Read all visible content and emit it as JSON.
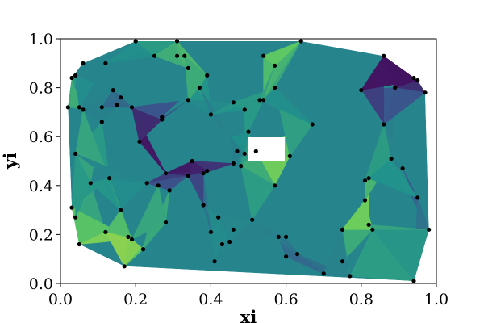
{
  "chart_data": {
    "type": "scatter",
    "title": "",
    "xlabel": "xi",
    "ylabel": "yi",
    "xlim": [
      0.0,
      1.0
    ],
    "ylim": [
      0.0,
      1.0
    ],
    "xticks": [
      "0.0",
      "0.2",
      "0.4",
      "0.6",
      "0.8",
      "1.0"
    ],
    "yticks": [
      "0.0",
      "0.2",
      "0.4",
      "0.6",
      "0.8",
      "1.0"
    ],
    "background": "triangulated color field (viridis) of the interpolated values over the convex hull of the points",
    "colormap": [
      "#440154",
      "#3b528b",
      "#21918c",
      "#5ec962",
      "#fde725"
    ],
    "point_color": "#000000",
    "grid": false,
    "legend": "none",
    "points": [
      [
        0.02,
        0.72
      ],
      [
        0.03,
        0.84
      ],
      [
        0.04,
        0.85
      ],
      [
        0.05,
        0.72
      ],
      [
        0.06,
        0.9
      ],
      [
        0.06,
        0.71
      ],
      [
        0.04,
        0.53
      ],
      [
        0.03,
        0.31
      ],
      [
        0.04,
        0.27
      ],
      [
        0.05,
        0.16
      ],
      [
        0.08,
        0.41
      ],
      [
        0.11,
        0.72
      ],
      [
        0.11,
        0.66
      ],
      [
        0.12,
        0.9
      ],
      [
        0.13,
        0.43
      ],
      [
        0.14,
        0.79
      ],
      [
        0.15,
        0.73
      ],
      [
        0.16,
        0.76
      ],
      [
        0.16,
        0.3
      ],
      [
        0.17,
        0.07
      ],
      [
        0.12,
        0.21
      ],
      [
        0.18,
        0.19
      ],
      [
        0.19,
        0.18
      ],
      [
        0.19,
        0.72
      ],
      [
        0.2,
        0.99
      ],
      [
        0.21,
        0.58
      ],
      [
        0.22,
        0.14
      ],
      [
        0.23,
        0.41
      ],
      [
        0.25,
        0.93
      ],
      [
        0.26,
        0.4
      ],
      [
        0.27,
        0.68
      ],
      [
        0.27,
        0.67
      ],
      [
        0.28,
        0.45
      ],
      [
        0.28,
        0.25
      ],
      [
        0.29,
        0.38
      ],
      [
        0.31,
        0.99
      ],
      [
        0.31,
        0.93
      ],
      [
        0.33,
        0.93
      ],
      [
        0.34,
        0.88
      ],
      [
        0.34,
        0.75
      ],
      [
        0.34,
        0.44
      ],
      [
        0.35,
        0.5
      ],
      [
        0.37,
        0.8
      ],
      [
        0.38,
        0.45
      ],
      [
        0.38,
        0.32
      ],
      [
        0.39,
        0.46
      ],
      [
        0.39,
        0.85
      ],
      [
        0.4,
        0.69
      ],
      [
        0.4,
        0.21
      ],
      [
        0.41,
        0.09
      ],
      [
        0.42,
        0.27
      ],
      [
        0.43,
        0.16
      ],
      [
        0.45,
        0.17
      ],
      [
        0.46,
        0.22
      ],
      [
        0.46,
        0.49
      ],
      [
        0.46,
        0.74
      ],
      [
        0.47,
        0.54
      ],
      [
        0.48,
        0.48
      ],
      [
        0.49,
        0.53
      ],
      [
        0.49,
        0.71
      ],
      [
        0.5,
        0.62
      ],
      [
        0.51,
        0.26
      ],
      [
        0.52,
        0.54
      ],
      [
        0.53,
        0.75
      ],
      [
        0.54,
        0.93
      ],
      [
        0.54,
        0.75
      ],
      [
        0.57,
        0.8
      ],
      [
        0.57,
        0.4
      ],
      [
        0.57,
        0.89
      ],
      [
        0.58,
        0.19
      ],
      [
        0.6,
        0.11
      ],
      [
        0.6,
        0.19
      ],
      [
        0.61,
        0.52
      ],
      [
        0.63,
        0.12
      ],
      [
        0.64,
        0.99
      ],
      [
        0.67,
        0.65
      ],
      [
        0.7,
        0.04
      ],
      [
        0.75,
        0.09
      ],
      [
        0.75,
        0.22
      ],
      [
        0.75,
        0.22
      ],
      [
        0.77,
        0.03
      ],
      [
        0.8,
        0.79
      ],
      [
        0.81,
        0.34
      ],
      [
        0.81,
        0.42
      ],
      [
        0.82,
        0.43
      ],
      [
        0.82,
        0.24
      ],
      [
        0.83,
        0.22
      ],
      [
        0.86,
        0.93
      ],
      [
        0.86,
        0.65
      ],
      [
        0.88,
        0.51
      ],
      [
        0.89,
        0.8
      ],
      [
        0.91,
        0.47
      ],
      [
        0.94,
        0.84
      ],
      [
        0.95,
        0.83
      ],
      [
        0.95,
        0.35
      ],
      [
        0.94,
        0.01
      ],
      [
        0.97,
        0.78
      ],
      [
        0.98,
        0.22
      ]
    ]
  }
}
